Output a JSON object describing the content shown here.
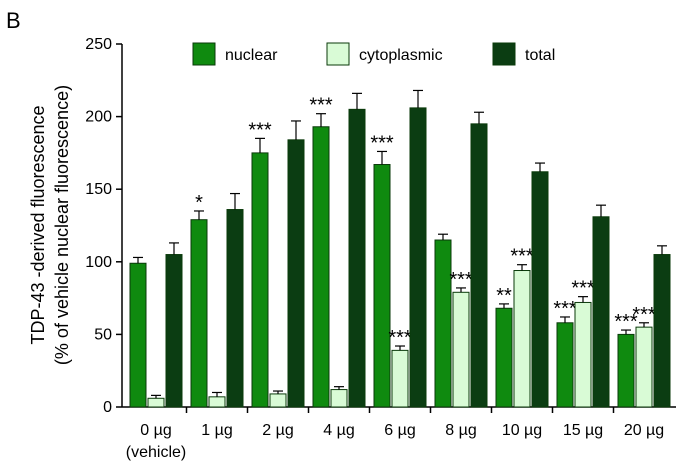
{
  "panel_label": "B",
  "chart_data": {
    "type": "bar",
    "ylabel_line1": "TDP-43 -derived fluorescence",
    "ylabel_line2": "(% of vehicle nuclear fluorescence)",
    "xlabel": "",
    "ylim": [
      0,
      250
    ],
    "yticks": [
      0,
      50,
      100,
      150,
      200,
      250
    ],
    "categories": [
      "0 µg",
      "1 µg",
      "2 µg",
      "4 µg",
      "6 µg",
      "8 µg",
      "10 µg",
      "15 µg",
      "20 µg"
    ],
    "category_sublabels": [
      "(vehicle)",
      "",
      "",
      "",
      "",
      "",
      "",
      "",
      ""
    ],
    "legend_position": "top",
    "grid": false,
    "series": [
      {
        "name": "nuclear",
        "color": "#0f8a0f",
        "values": [
          99,
          129,
          175,
          193,
          167,
          115,
          68,
          58,
          50
        ],
        "errors": [
          4,
          6,
          10,
          9,
          9,
          4,
          3,
          4,
          3
        ],
        "annotations": [
          "",
          "*",
          "***",
          "***",
          "***",
          "",
          "**",
          "***",
          "***"
        ]
      },
      {
        "name": "cytoplasmic",
        "color": "#d9fbd6",
        "values": [
          6,
          7,
          9,
          12,
          39,
          79,
          94,
          72,
          55
        ],
        "errors": [
          2,
          3,
          2,
          2,
          3,
          3,
          4,
          4,
          3
        ],
        "annotations": [
          "",
          "",
          "",
          "",
          "***",
          "***",
          "***",
          "***",
          "***"
        ]
      },
      {
        "name": "total",
        "color": "#0b3d12",
        "values": [
          105,
          136,
          184,
          205,
          206,
          195,
          162,
          131,
          105
        ],
        "errors": [
          8,
          11,
          13,
          11,
          12,
          8,
          6,
          8,
          6
        ],
        "annotations": [
          "",
          "",
          "",
          "",
          "",
          "",
          "",
          "",
          ""
        ]
      }
    ]
  }
}
